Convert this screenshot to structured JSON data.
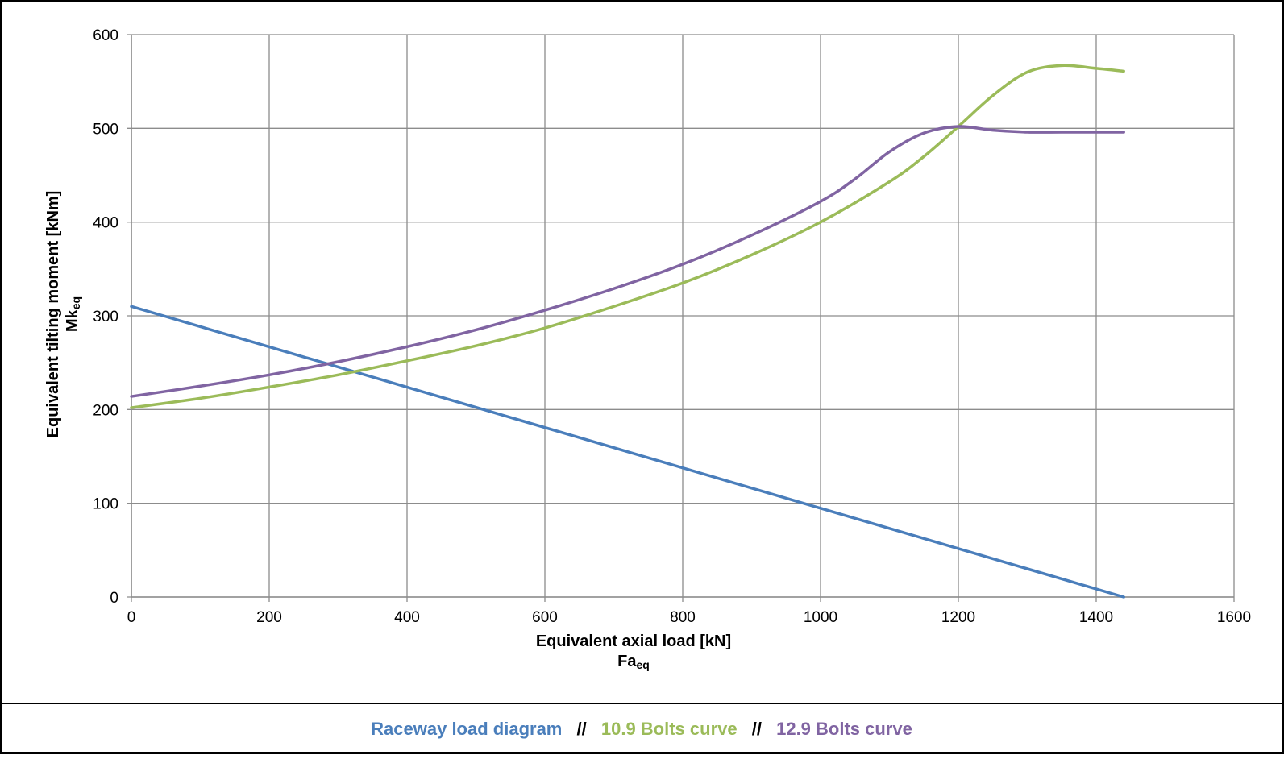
{
  "chart_data": {
    "type": "line",
    "title": "",
    "xlabel": "Equivalent axial load [kN]",
    "xlabel_sub": "Fa",
    "xlabel_sub_suffix": "eq",
    "ylabel": "Equivalent tilting moment [kNm]",
    "ylabel_sub": "Mk",
    "ylabel_sub_suffix": "eq",
    "xlim": [
      0,
      1600
    ],
    "ylim": [
      0,
      600
    ],
    "xticks": [
      "0",
      "200",
      "400",
      "600",
      "800",
      "1000",
      "1200",
      "1400",
      "1600"
    ],
    "yticks": [
      "0",
      "100",
      "200",
      "300",
      "400",
      "500",
      "600"
    ],
    "grid": true,
    "legend_separator": "//",
    "series": [
      {
        "name": "Raceway load diagram",
        "color": "#4A7EBB",
        "x": [
          0,
          1440
        ],
        "y": [
          310,
          0
        ]
      },
      {
        "name": "10.9 Bolts curve",
        "color": "#9BBB59",
        "x": [
          0,
          100,
          200,
          300,
          400,
          500,
          600,
          700,
          800,
          900,
          1000,
          1100,
          1150,
          1200,
          1250,
          1300,
          1350,
          1400,
          1440
        ],
        "y": [
          202,
          212,
          224,
          237,
          252,
          268,
          287,
          310,
          335,
          365,
          400,
          443,
          470,
          502,
          535,
          560,
          567,
          564,
          561
        ]
      },
      {
        "name": "12.9 Bolts curve",
        "color": "#8064A2",
        "x": [
          0,
          100,
          200,
          300,
          400,
          500,
          600,
          700,
          800,
          900,
          1000,
          1050,
          1100,
          1150,
          1200,
          1250,
          1300,
          1350,
          1400,
          1440
        ],
        "y": [
          214,
          225,
          237,
          251,
          267,
          285,
          306,
          329,
          355,
          386,
          422,
          446,
          475,
          495,
          502,
          498,
          496,
          496,
          496,
          496
        ]
      }
    ]
  }
}
